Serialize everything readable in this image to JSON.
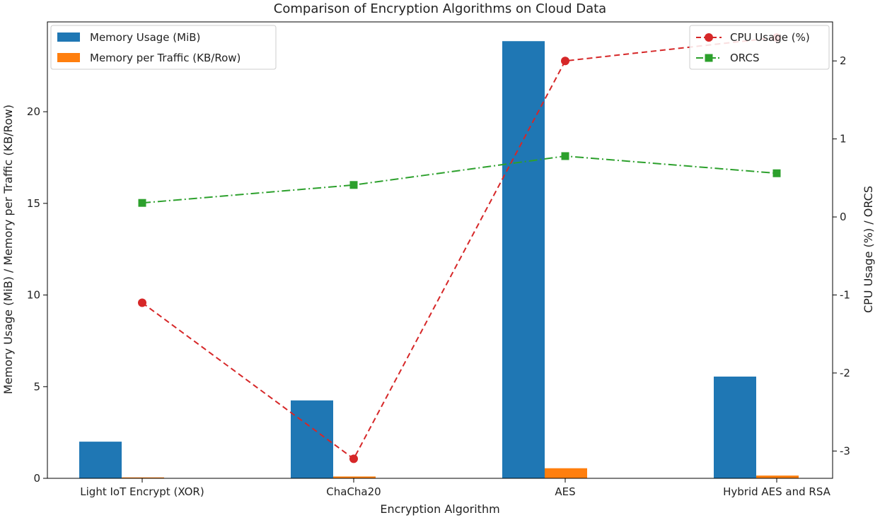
{
  "chart_data": {
    "type": "bar",
    "title": "Comparison of Encryption Algorithms on Cloud Data",
    "xlabel": "Encryption Algorithm",
    "ylabel_left": "Memory Usage (MiB) / Memory per Traffic (KB/Row)",
    "ylabel_right": "CPU Usage (%) / ORCS",
    "categories": [
      "Light IoT Encrypt (XOR)",
      "ChaCha20",
      "AES",
      "Hybrid AES and RSA"
    ],
    "ylim_left": [
      0,
      24.9
    ],
    "ylim_right": [
      -3.35,
      2.5
    ],
    "left_ticks": [
      0,
      5,
      10,
      15,
      20
    ],
    "right_ticks": [
      -3,
      -2,
      -1,
      0,
      1,
      2
    ],
    "bar_series": [
      {
        "name": "Memory Usage (MiB)",
        "color": "#1f77b4",
        "values": [
          2.0,
          4.25,
          23.85,
          5.55
        ]
      },
      {
        "name": "Memory per Traffic (KB/Row)",
        "color": "#ff7f0e",
        "values": [
          0.05,
          0.1,
          0.55,
          0.15
        ]
      }
    ],
    "line_series": [
      {
        "name": "CPU Usage (%)",
        "color": "#d62728",
        "marker": "circle",
        "style": "dashed",
        "values": [
          -1.1,
          -3.1,
          2.0,
          2.3
        ]
      },
      {
        "name": "ORCS",
        "color": "#2ca02c",
        "marker": "square",
        "style": "dashdot",
        "values": [
          0.18,
          0.41,
          0.78,
          0.56
        ]
      }
    ],
    "legend_left_position": "upper-left",
    "legend_right_position": "upper-right",
    "grid": false
  }
}
